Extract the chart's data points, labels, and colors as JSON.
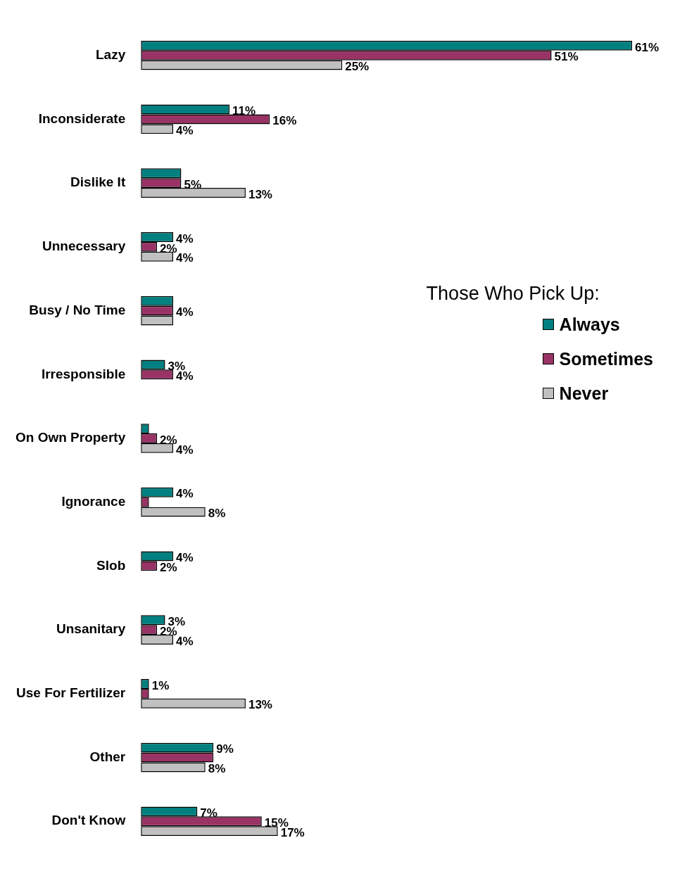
{
  "chart_data": {
    "type": "bar",
    "orientation": "horizontal",
    "legend_title": "Those Who Pick Up:",
    "legend": "right",
    "categories": [
      "Lazy",
      "Inconsiderate",
      "Dislike It",
      "Unnecessary",
      "Busy / No Time",
      "Irresponsible",
      "On Own Property",
      "Ignorance",
      "Slob",
      "Unsanitary",
      "Use For Fertilizer",
      "Other",
      "Don't Know"
    ],
    "series": [
      {
        "name": "Always",
        "color": "#008080",
        "values": [
          61,
          11,
          5,
          4,
          4,
          3,
          1,
          4,
          4,
          3,
          1,
          9,
          7
        ],
        "value_labels": [
          "61%",
          "11%",
          null,
          "4%",
          null,
          "3%",
          null,
          "4%",
          "4%",
          "3%",
          "1%",
          "9%",
          "7%"
        ]
      },
      {
        "name": "Sometimes",
        "color": "#993366",
        "values": [
          51,
          16,
          5,
          2,
          4,
          4,
          2,
          1,
          2,
          2,
          1,
          9,
          15
        ],
        "value_labels": [
          "51%",
          "16%",
          "5%",
          "2%",
          "4%",
          "4%",
          "2%",
          null,
          "2%",
          "2%",
          null,
          null,
          "15%"
        ]
      },
      {
        "name": "Never",
        "color": "#c0c0c0",
        "values": [
          25,
          4,
          13,
          4,
          4,
          null,
          4,
          8,
          null,
          4,
          13,
          8,
          17
        ],
        "value_labels": [
          "25%",
          "4%",
          "13%",
          "4%",
          null,
          null,
          "4%",
          "8%",
          null,
          "4%",
          "13%",
          "8%",
          "17%"
        ]
      }
    ]
  }
}
